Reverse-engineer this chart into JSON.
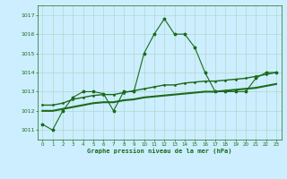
{
  "title": "Graphe pression niveau de la mer (hPa)",
  "background_color": "#cceeff",
  "grid_color": "#b0d8cc",
  "line_color": "#1a6b1a",
  "xlim": [
    -0.5,
    23.5
  ],
  "ylim": [
    1010.5,
    1017.5
  ],
  "yticks": [
    1011,
    1012,
    1013,
    1014,
    1015,
    1016,
    1017
  ],
  "xticks": [
    0,
    1,
    2,
    3,
    4,
    5,
    6,
    7,
    8,
    9,
    10,
    11,
    12,
    13,
    14,
    15,
    16,
    17,
    18,
    19,
    20,
    21,
    22,
    23
  ],
  "series1_x": [
    0,
    1,
    2,
    3,
    4,
    5,
    6,
    7,
    8,
    9,
    10,
    11,
    12,
    13,
    14,
    15,
    16,
    17,
    18,
    19,
    20,
    21,
    22,
    23
  ],
  "series1_y": [
    1011.3,
    1011.0,
    1012.0,
    1012.7,
    1013.0,
    1013.0,
    1012.9,
    1012.0,
    1013.0,
    1013.0,
    1015.0,
    1016.0,
    1016.8,
    1016.0,
    1016.0,
    1015.3,
    1014.0,
    1013.0,
    1013.0,
    1013.0,
    1013.0,
    1013.7,
    1014.0,
    1014.0
  ],
  "series2_x": [
    0,
    1,
    2,
    3,
    4,
    5,
    6,
    7,
    8,
    9,
    10,
    11,
    12,
    13,
    14,
    15,
    16,
    17,
    18,
    19,
    20,
    21,
    22,
    23
  ],
  "series2_y": [
    1012.0,
    1012.0,
    1012.1,
    1012.2,
    1012.3,
    1012.4,
    1012.45,
    1012.45,
    1012.55,
    1012.6,
    1012.7,
    1012.75,
    1012.8,
    1012.85,
    1012.9,
    1012.95,
    1013.0,
    1013.0,
    1013.05,
    1013.1,
    1013.15,
    1013.2,
    1013.3,
    1013.4
  ],
  "series3_x": [
    0,
    1,
    2,
    3,
    4,
    5,
    6,
    7,
    8,
    9,
    10,
    11,
    12,
    13,
    14,
    15,
    16,
    17,
    18,
    19,
    20,
    21,
    22,
    23
  ],
  "series3_y": [
    1012.3,
    1012.3,
    1012.4,
    1012.6,
    1012.7,
    1012.8,
    1012.85,
    1012.85,
    1012.95,
    1013.05,
    1013.15,
    1013.25,
    1013.35,
    1013.35,
    1013.45,
    1013.5,
    1013.55,
    1013.55,
    1013.6,
    1013.65,
    1013.7,
    1013.8,
    1013.9,
    1014.0
  ],
  "series1_lw": 0.8,
  "series2_lw": 1.5,
  "series3_lw": 1.0
}
